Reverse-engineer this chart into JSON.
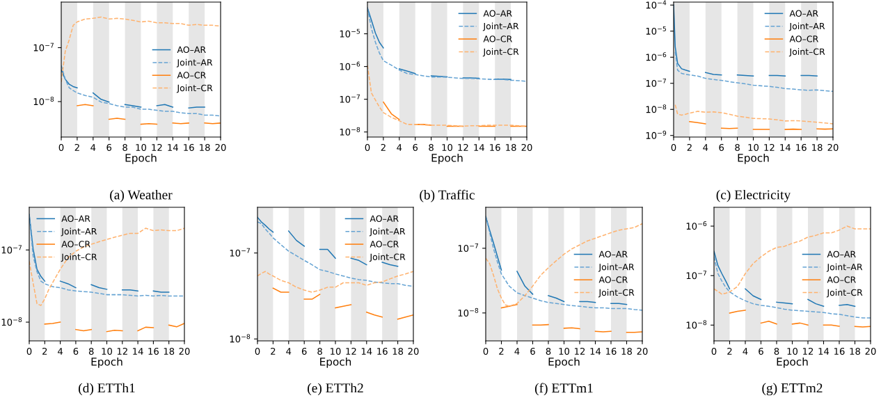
{
  "chart_data": [
    {
      "type": "line",
      "title": "(a) Weather",
      "xlabel": "Epoch",
      "log": "y",
      "legend": "center right",
      "xlim": [
        0,
        20
      ],
      "xticks": [
        0,
        2,
        4,
        6,
        8,
        10,
        12,
        14,
        16,
        18,
        20
      ],
      "ylim": [
        2.2e-09,
        7e-07
      ],
      "yticks": [
        {
          "value": 1e-07,
          "label": "10$^{−7}$"
        },
        {
          "value": 1e-08,
          "label": "10$^{−8}$"
        }
      ],
      "bands": [
        {
          "axis": "x",
          "from": 0,
          "to": 2,
          "color": "#e6e6e6"
        },
        {
          "axis": "x",
          "from": 4,
          "to": 6,
          "color": "#e6e6e6"
        },
        {
          "axis": "x",
          "from": 8,
          "to": 10,
          "color": "#e6e6e6"
        },
        {
          "axis": "x",
          "from": 12,
          "to": 14,
          "color": "#e6e6e6"
        },
        {
          "axis": "x",
          "from": 16,
          "to": 18,
          "color": "#e6e6e6"
        }
      ],
      "series": [
        {
          "name": "AO–AR",
          "color": "#1f77b4",
          "line_style": "solid",
          "x": [
            0,
            0.5,
            1,
            1.5,
            2,
            3,
            4,
            5,
            6,
            7,
            8,
            9,
            10,
            11,
            12,
            13,
            14,
            15,
            16,
            17,
            18
          ],
          "values": [
            3.9e-08,
            2.6e-08,
            2.1e-08,
            1.9e-08,
            1.8e-08,
            null,
            1.45e-08,
            1.1e-08,
            9.8e-09,
            null,
            8.8e-09,
            8.4e-09,
            7.9e-09,
            null,
            8.4e-09,
            8.8e-09,
            7.9e-09,
            null,
            7.6e-09,
            7.9e-09,
            7.9e-09
          ]
        },
        {
          "name": "Joint–AR",
          "color": "#65a3d3",
          "line_style": "dashed",
          "x": [
            0,
            0.5,
            1,
            1.5,
            2,
            3,
            4,
            5,
            6,
            7,
            8,
            9,
            10,
            11,
            12,
            13,
            14,
            15,
            16,
            17,
            18,
            19,
            20
          ],
          "values": [
            4.7e-08,
            2.6e-08,
            1.8e-08,
            1.6e-08,
            1.45e-08,
            1.3e-08,
            1.2e-08,
            9.8e-09,
            9.2e-09,
            8.4e-09,
            7.9e-09,
            7.9e-09,
            7.2e-09,
            7.2e-09,
            6.9e-09,
            6.6e-09,
            6.6e-09,
            6.2e-09,
            6e-09,
            6e-09,
            5.6e-09,
            5.6e-09,
            5.4e-09
          ]
        },
        {
          "name": "AO–CR",
          "color": "#ff7f0e",
          "line_style": "solid",
          "x": [
            2,
            3,
            4,
            5,
            6,
            7,
            8,
            9,
            10,
            11,
            12,
            13,
            14,
            15,
            16,
            17,
            18,
            19,
            20
          ],
          "values": [
            8.4e-09,
            8.8e-09,
            8.4e-09,
            null,
            4.7e-09,
            4.9e-09,
            4.7e-09,
            null,
            3.8e-09,
            3.9e-09,
            3.8e-09,
            null,
            4e-09,
            3.9e-09,
            4e-09,
            null,
            4e-09,
            3.9e-09,
            4e-09
          ]
        },
        {
          "name": "Joint–CR",
          "color": "#ffb26e",
          "line_style": "dashed",
          "x": [
            0,
            0.5,
            1,
            1.5,
            2,
            3,
            4,
            5,
            6,
            7,
            8,
            9,
            10,
            11,
            12,
            13,
            14,
            15,
            16,
            17,
            18,
            19,
            20
          ],
          "values": [
            2.3e-08,
            8.5e-08,
            1.4e-07,
            2.6e-07,
            3e-07,
            3.4e-07,
            3.5e-07,
            3.7e-07,
            3.4e-07,
            3.5e-07,
            3.4e-07,
            3.2e-07,
            3e-07,
            3.1e-07,
            2.9e-07,
            2.9e-07,
            2.8e-07,
            2.8e-07,
            2.6e-07,
            2.7e-07,
            2.6e-07,
            2.6e-07,
            2.5e-07
          ]
        }
      ]
    },
    {
      "type": "line",
      "title": "(b) Traffic",
      "xlabel": "Epoch",
      "log": "y",
      "legend": "top right",
      "xlim": [
        0,
        20
      ],
      "xticks": [
        0,
        2,
        4,
        6,
        8,
        10,
        12,
        14,
        16,
        18,
        20
      ],
      "ylim": [
        7e-09,
        9.3e-05
      ],
      "yticks": [
        {
          "value": 1e-05,
          "label": "10$^{−5}$"
        },
        {
          "value": 1e-06,
          "label": "10$^{−6}$"
        },
        {
          "value": 1e-07,
          "label": "10$^{−7}$"
        },
        {
          "value": 1e-08,
          "label": "10$^{−8}$"
        }
      ],
      "bands": [
        {
          "axis": "x",
          "from": 0,
          "to": 2,
          "color": "#e6e6e6"
        },
        {
          "axis": "x",
          "from": 4,
          "to": 6,
          "color": "#e6e6e6"
        },
        {
          "axis": "x",
          "from": 8,
          "to": 10,
          "color": "#e6e6e6"
        },
        {
          "axis": "x",
          "from": 12,
          "to": 14,
          "color": "#e6e6e6"
        },
        {
          "axis": "x",
          "from": 16,
          "to": 18,
          "color": "#e6e6e6"
        }
      ],
      "series": [
        {
          "name": "AO–AR",
          "color": "#1f77b4",
          "line_style": "solid",
          "x": [
            0,
            0.5,
            1,
            1.5,
            2,
            3,
            4,
            5,
            6,
            7,
            8,
            9,
            10,
            11,
            12,
            13,
            14,
            15,
            16,
            17,
            18
          ],
          "values": [
            6.2e-05,
            2.6e-05,
            1.05e-05,
            5.5e-06,
            3.7e-06,
            null,
            8.5e-07,
            7.2e-07,
            6.1e-07,
            null,
            5.2e-07,
            5e-07,
            4.8e-07,
            null,
            4.5e-07,
            4.5e-07,
            4.4e-07,
            null,
            4.1e-07,
            4.1e-07,
            4e-07
          ]
        },
        {
          "name": "Joint–AR",
          "color": "#65a3d3",
          "line_style": "dashed",
          "x": [
            0,
            0.5,
            1,
            1.5,
            2,
            3,
            4,
            5,
            6,
            7,
            8,
            9,
            10,
            11,
            12,
            13,
            14,
            15,
            16,
            17,
            18,
            19,
            20
          ],
          "values": [
            6.2e-05,
            1.45e-05,
            5.5e-06,
            2.6e-06,
            1.5e-06,
            1.1e-06,
            7.8e-07,
            6.1e-07,
            5.7e-07,
            5.2e-07,
            4.8e-07,
            4.8e-07,
            4.7e-07,
            4.5e-07,
            4.3e-07,
            4.3e-07,
            4.2e-07,
            4.1e-07,
            4e-07,
            4e-07,
            3.8e-07,
            3.7e-07,
            3.5e-07
          ]
        },
        {
          "name": "AO–CR",
          "color": "#ff7f0e",
          "line_style": "solid",
          "x": [
            2,
            3,
            4,
            5,
            6,
            7,
            8,
            9,
            10,
            11,
            12,
            13,
            14,
            15,
            16,
            17,
            18,
            19,
            20
          ],
          "values": [
            8.2e-08,
            3.6e-08,
            2.4e-08,
            null,
            1.7e-08,
            1.7e-08,
            1.6e-08,
            null,
            1.5e-08,
            1.5e-08,
            1.5e-08,
            null,
            1.5e-08,
            1.5e-08,
            1.5e-08,
            null,
            1.5e-08,
            1.5e-08,
            1.5e-08
          ]
        },
        {
          "name": "Joint–CR",
          "color": "#ffb26e",
          "line_style": "dashed",
          "x": [
            0,
            0.5,
            1,
            1.5,
            2,
            3,
            4,
            5,
            6,
            7,
            8,
            9,
            10,
            11,
            12,
            13,
            14,
            15,
            16,
            17,
            18,
            19,
            20
          ],
          "values": [
            1.1e-06,
            1.55e-07,
            9.5e-08,
            5.8e-08,
            3.9e-08,
            2.8e-08,
            2.2e-08,
            1.7e-08,
            1.7e-08,
            1.65e-08,
            1.6e-08,
            1.6e-08,
            1.6e-08,
            1.55e-08,
            1.5e-08,
            1.55e-08,
            1.55e-08,
            1.6e-08,
            1.6e-08,
            1.6e-08,
            1.6e-08,
            1.55e-08,
            1.5e-08
          ]
        }
      ]
    },
    {
      "type": "line",
      "title": "(c) Electricity",
      "xlabel": "Epoch",
      "log": "y",
      "legend": "top right",
      "xlim": [
        0,
        20
      ],
      "xticks": [
        0,
        2,
        4,
        6,
        8,
        10,
        12,
        14,
        16,
        18,
        20
      ],
      "ylim": [
        8.7e-10,
        0.00013
      ],
      "yticks": [
        {
          "value": 0.0001,
          "label": "10$^{−4}$"
        },
        {
          "value": 1e-05,
          "label": "10$^{−5}$"
        },
        {
          "value": 1e-06,
          "label": "10$^{−6}$"
        },
        {
          "value": 1e-07,
          "label": "10$^{−7}$"
        },
        {
          "value": 1e-08,
          "label": "10$^{−8}$"
        },
        {
          "value": 1e-09,
          "label": "10$^{−9}$"
        }
      ],
      "bands": [
        {
          "axis": "x",
          "from": 0,
          "to": 2,
          "color": "#e6e6e6"
        },
        {
          "axis": "x",
          "from": 4,
          "to": 6,
          "color": "#e6e6e6"
        },
        {
          "axis": "x",
          "from": 8,
          "to": 10,
          "color": "#e6e6e6"
        },
        {
          "axis": "x",
          "from": 12,
          "to": 14,
          "color": "#e6e6e6"
        },
        {
          "axis": "x",
          "from": 16,
          "to": 18,
          "color": "#e6e6e6"
        }
      ],
      "series": [
        {
          "name": "AO–AR",
          "color": "#1f77b4",
          "line_style": "solid",
          "x": [
            0,
            0.2,
            0.5,
            1,
            1.5,
            2,
            3,
            4,
            5,
            6,
            7,
            8,
            9,
            10,
            11,
            12,
            13,
            14,
            15,
            16,
            17,
            18
          ],
          "values": [
            0.0001,
            2.5e-06,
            5.8e-07,
            3.6e-07,
            3.2e-07,
            2.9e-07,
            null,
            2.6e-07,
            2.2e-07,
            2.1e-07,
            null,
            2.1e-07,
            2e-07,
            1.9e-07,
            null,
            2e-07,
            2e-07,
            1.9e-07,
            null,
            2e-07,
            2e-07,
            1.9e-07
          ]
        },
        {
          "name": "Joint–AR",
          "color": "#65a3d3",
          "line_style": "dashed",
          "x": [
            0.2,
            0.5,
            1,
            1.5,
            2,
            3,
            4,
            5,
            6,
            7,
            8,
            9,
            10,
            11,
            12,
            13,
            14,
            15,
            16,
            17,
            18,
            19,
            20
          ],
          "values": [
            1.6e-06,
            3.2e-07,
            2.4e-07,
            2.2e-07,
            2.1e-07,
            1.9e-07,
            1.55e-07,
            1.4e-07,
            1.3e-07,
            1.15e-07,
            1.05e-07,
            9.5e-08,
            8.5e-08,
            8e-08,
            7.6e-08,
            7e-08,
            6.3e-08,
            6e-08,
            5.6e-08,
            5.4e-08,
            5.6e-08,
            5.2e-08,
            4.9e-08
          ]
        },
        {
          "name": "AO–CR",
          "color": "#ff7f0e",
          "line_style": "solid",
          "x": [
            2,
            3,
            4,
            5,
            6,
            7,
            8,
            9,
            10,
            11,
            12,
            13,
            14,
            15,
            16,
            17,
            18,
            19,
            20
          ],
          "values": [
            3.4e-09,
            3.1e-09,
            2.8e-09,
            null,
            1.9e-09,
            1.85e-09,
            1.9e-09,
            null,
            1.7e-09,
            1.7e-09,
            1.7e-09,
            null,
            1.7e-09,
            1.75e-09,
            1.7e-09,
            null,
            1.8e-09,
            1.75e-09,
            1.8e-09
          ]
        },
        {
          "name": "Joint–CR",
          "color": "#ffb26e",
          "line_style": "dashed",
          "x": [
            0.2,
            0.5,
            1,
            1.5,
            2,
            3,
            4,
            5,
            6,
            7,
            8,
            9,
            10,
            11,
            12,
            13,
            14,
            15,
            16,
            17,
            18,
            19,
            20
          ],
          "values": [
            1.5e-08,
            6.6e-09,
            6e-09,
            6.5e-09,
            7.2e-09,
            8.4e-09,
            7.8e-09,
            8e-09,
            7.5e-09,
            6.5e-09,
            5.5e-09,
            5e-09,
            4.5e-09,
            4.4e-09,
            4.3e-09,
            4e-09,
            3.6e-09,
            3.7e-09,
            3.6e-09,
            3.4e-09,
            3.2e-09,
            3e-09,
            2.8e-09
          ]
        }
      ]
    },
    {
      "type": "line",
      "title": "(d) ETTh1",
      "xlabel": "Epoch",
      "log": "y",
      "legend": "top left",
      "xlim": [
        0,
        20
      ],
      "xticks": [
        0,
        2,
        4,
        6,
        8,
        10,
        12,
        14,
        16,
        18,
        20
      ],
      "ylim": [
        5.5e-09,
        3.9e-07
      ],
      "yticks": [
        {
          "value": 1e-07,
          "label": "10$^{−7}$"
        },
        {
          "value": 1e-08,
          "label": "10$^{−8}$"
        }
      ],
      "bands": [
        {
          "axis": "x",
          "from": 0,
          "to": 2,
          "color": "#e6e6e6"
        },
        {
          "axis": "x",
          "from": 4,
          "to": 6,
          "color": "#e6e6e6"
        },
        {
          "axis": "x",
          "from": 8,
          "to": 10,
          "color": "#e6e6e6"
        },
        {
          "axis": "x",
          "from": 12,
          "to": 14,
          "color": "#e6e6e6"
        },
        {
          "axis": "x",
          "from": 16,
          "to": 18,
          "color": "#e6e6e6"
        }
      ],
      "series": [
        {
          "name": "AO–AR",
          "color": "#1f77b4",
          "line_style": "solid",
          "x": [
            0,
            0.5,
            1,
            1.5,
            2,
            3,
            4,
            5,
            6,
            7,
            8,
            9,
            10,
            11,
            12,
            13,
            14,
            15,
            16,
            17,
            18
          ],
          "values": [
            3.1e-07,
            1.04e-07,
            5.4e-08,
            4.3e-08,
            3.7e-08,
            null,
            3.7e-08,
            3.4e-08,
            3e-08,
            null,
            3.3e-08,
            3e-08,
            2.85e-08,
            null,
            2.8e-08,
            2.8e-08,
            2.7e-08,
            null,
            2.7e-08,
            2.6e-08,
            2.6e-08
          ]
        },
        {
          "name": "Joint–AR",
          "color": "#65a3d3",
          "line_style": "dashed",
          "x": [
            0,
            0.5,
            1,
            1.5,
            2,
            3,
            4,
            5,
            6,
            7,
            8,
            9,
            10,
            11,
            12,
            13,
            14,
            15,
            16,
            17,
            18,
            19,
            20
          ],
          "values": [
            3.1e-07,
            8.3e-08,
            5e-08,
            3.7e-08,
            3.4e-08,
            3.1e-08,
            3e-08,
            2.8e-08,
            2.7e-08,
            2.65e-08,
            2.6e-08,
            2.5e-08,
            2.4e-08,
            2.4e-08,
            2.4e-08,
            2.35e-08,
            2.3e-08,
            2.35e-08,
            2.3e-08,
            2.35e-08,
            2.3e-08,
            2.3e-08,
            2.3e-08
          ]
        },
        {
          "name": "AO–CR",
          "color": "#ff7f0e",
          "line_style": "solid",
          "x": [
            2,
            3,
            4,
            5,
            6,
            7,
            8,
            9,
            10,
            11,
            12,
            13,
            14,
            15,
            16,
            17,
            18,
            19,
            20
          ],
          "values": [
            9.4e-09,
            9.6e-09,
            1e-08,
            null,
            7.9e-09,
            7.6e-09,
            7.9e-09,
            null,
            7.4e-09,
            7.7e-09,
            7.6e-09,
            null,
            7.6e-09,
            8.5e-09,
            8.4e-09,
            null,
            9.1e-09,
            8.6e-09,
            9.6e-09
          ]
        },
        {
          "name": "Joint–CR",
          "color": "#ffb26e",
          "line_style": "dashed",
          "x": [
            0,
            0.5,
            1,
            1.5,
            2,
            2.5,
            3,
            4,
            5,
            6,
            7,
            8,
            9,
            10,
            11,
            12,
            13,
            14,
            15,
            16,
            17,
            18,
            19,
            20
          ],
          "values": [
            7e-08,
            3.5e-08,
            1.8e-08,
            1.7e-08,
            2.1e-08,
            2.8e-08,
            3.5e-08,
            5.4e-08,
            7.8e-08,
            9.6e-08,
            1.1e-07,
            1.2e-07,
            1.3e-07,
            1.4e-07,
            1.5e-07,
            1.6e-07,
            1.7e-07,
            1.7e-07,
            2e-07,
            1.85e-07,
            1.9e-07,
            1.85e-07,
            1.85e-07,
            2e-07
          ]
        }
      ]
    },
    {
      "type": "line",
      "title": "(e) ETTh2",
      "xlabel": "Epoch",
      "log": "y",
      "legend": "top right",
      "xlim": [
        0,
        20
      ],
      "xticks": [
        0,
        2,
        4,
        6,
        8,
        10,
        12,
        14,
        16,
        18,
        20
      ],
      "ylim": [
        9.5e-09,
        3.4e-07
      ],
      "yticks": [
        {
          "value": 1e-07,
          "label": "10$^{−7}$"
        },
        {
          "value": 1e-08,
          "label": "10$^{−8}$"
        }
      ],
      "bands": [
        {
          "axis": "x",
          "from": 0,
          "to": 2,
          "color": "#e6e6e6"
        },
        {
          "axis": "x",
          "from": 4,
          "to": 6,
          "color": "#e6e6e6"
        },
        {
          "axis": "x",
          "from": 8,
          "to": 10,
          "color": "#e6e6e6"
        },
        {
          "axis": "x",
          "from": 12,
          "to": 14,
          "color": "#e6e6e6"
        },
        {
          "axis": "x",
          "from": 16,
          "to": 18,
          "color": "#e6e6e6"
        }
      ],
      "series": [
        {
          "name": "AO–AR",
          "color": "#1f77b4",
          "line_style": "solid",
          "x": [
            0,
            0.5,
            1,
            1.5,
            2,
            3,
            4,
            5,
            6,
            7,
            8,
            9,
            10,
            11,
            12,
            13,
            14,
            15,
            16,
            17,
            18
          ],
          "values": [
            2.6e-07,
            2.3e-07,
            2.1e-07,
            1.9e-07,
            1.75e-07,
            null,
            1.8e-07,
            1.4e-07,
            1.2e-07,
            null,
            1.1e-07,
            1.1e-07,
            8.7e-08,
            null,
            8.7e-08,
            8.2e-08,
            7.3e-08,
            null,
            7.8e-08,
            7.3e-08,
            7e-08
          ]
        },
        {
          "name": "Joint–AR",
          "color": "#65a3d3",
          "line_style": "dashed",
          "x": [
            0,
            0.5,
            1,
            1.5,
            2,
            3,
            4,
            5,
            6,
            7,
            8,
            9,
            10,
            11,
            12,
            13,
            14,
            15,
            16,
            17,
            18,
            19,
            20
          ],
          "values": [
            2.3e-07,
            2.2e-07,
            1.9e-07,
            1.7e-07,
            1.5e-07,
            1.25e-07,
            1.05e-07,
            9.3e-08,
            8.2e-08,
            7.3e-08,
            6.4e-08,
            6.1e-08,
            5.7e-08,
            5.4e-08,
            5.1e-08,
            4.9e-08,
            4.8e-08,
            4.6e-08,
            4.5e-08,
            4.4e-08,
            4.4e-08,
            4.2e-08,
            4.1e-08
          ]
        },
        {
          "name": "AO–CR",
          "color": "#ff7f0e",
          "line_style": "solid",
          "x": [
            2,
            3,
            4,
            5,
            6,
            7,
            8,
            9,
            10,
            11,
            12,
            13,
            14,
            15,
            16,
            17,
            18,
            19,
            20
          ],
          "values": [
            3.9e-08,
            3.5e-08,
            3.5e-08,
            null,
            2.9e-08,
            2.9e-08,
            3.3e-08,
            null,
            2.3e-08,
            2.4e-08,
            2.5e-08,
            null,
            2.05e-08,
            1.9e-08,
            1.8e-08,
            null,
            1.7e-08,
            1.8e-08,
            1.9e-08
          ]
        },
        {
          "name": "Joint–CR",
          "color": "#ffb26e",
          "line_style": "dashed",
          "x": [
            0,
            0.5,
            1,
            1.5,
            2,
            3,
            4,
            5,
            6,
            7,
            8,
            9,
            10,
            11,
            12,
            13,
            14,
            15,
            16,
            17,
            18,
            19,
            20
          ],
          "values": [
            5.4e-08,
            5.8e-08,
            6.1e-08,
            5.7e-08,
            5.4e-08,
            4.8e-08,
            4.5e-08,
            4e-08,
            3.7e-08,
            3.5e-08,
            3.7e-08,
            4e-08,
            4e-08,
            4.5e-08,
            4.5e-08,
            4.5e-08,
            4.2e-08,
            4.5e-08,
            4.6e-08,
            5e-08,
            5.4e-08,
            5.7e-08,
            6.1e-08
          ]
        }
      ]
    },
    {
      "type": "line",
      "title": "(f) ETTm1",
      "xlabel": "Epoch",
      "log": "y",
      "legend": "center right",
      "xlim": [
        0,
        20
      ],
      "xticks": [
        0,
        2,
        4,
        6,
        8,
        10,
        12,
        14,
        16,
        18,
        20
      ],
      "ylim": [
        3.7e-09,
        4.3e-07
      ],
      "yticks": [
        {
          "value": 1e-07,
          "label": "10$^{−7}$"
        },
        {
          "value": 1e-08,
          "label": "10$^{−8}$"
        }
      ],
      "bands": [
        {
          "axis": "x",
          "from": 0,
          "to": 2,
          "color": "#e6e6e6"
        },
        {
          "axis": "x",
          "from": 4,
          "to": 6,
          "color": "#e6e6e6"
        },
        {
          "axis": "x",
          "from": 8,
          "to": 10,
          "color": "#e6e6e6"
        },
        {
          "axis": "x",
          "from": 12,
          "to": 14,
          "color": "#e6e6e6"
        },
        {
          "axis": "x",
          "from": 16,
          "to": 18,
          "color": "#e6e6e6"
        }
      ],
      "series": [
        {
          "name": "AO–AR",
          "color": "#1f77b4",
          "line_style": "solid",
          "x": [
            0,
            0.5,
            1,
            1.5,
            2,
            3,
            4,
            5,
            6,
            7,
            8,
            9,
            10,
            11,
            12,
            13,
            14,
            15,
            16,
            17,
            18
          ],
          "values": [
            3.1e-07,
            1.9e-07,
            1.2e-07,
            7.4e-08,
            4.6e-08,
            null,
            4.4e-08,
            2.6e-08,
            1.95e-08,
            null,
            1.85e-08,
            1.7e-08,
            1.5e-08,
            null,
            1.5e-08,
            1.5e-08,
            1.45e-08,
            null,
            1.4e-08,
            1.4e-08,
            1.35e-08
          ]
        },
        {
          "name": "Joint–AR",
          "color": "#65a3d3",
          "line_style": "dashed",
          "x": [
            0,
            0.5,
            1,
            1.5,
            2,
            3,
            4,
            5,
            6,
            7,
            8,
            9,
            10,
            11,
            12,
            13,
            14,
            15,
            16,
            17,
            18,
            19,
            20
          ],
          "values": [
            3.1e-07,
            1.75e-07,
            9.8e-08,
            6.1e-08,
            4e-08,
            2.6e-08,
            2.05e-08,
            1.85e-08,
            1.7e-08,
            1.55e-08,
            1.45e-08,
            1.4e-08,
            1.35e-08,
            1.3e-08,
            1.27e-08,
            1.23e-08,
            1.2e-08,
            1.2e-08,
            1.17e-08,
            1.17e-08,
            1.17e-08,
            1.13e-08,
            1.1e-08
          ]
        },
        {
          "name": "AO–CR",
          "color": "#ff7f0e",
          "line_style": "solid",
          "x": [
            2,
            3,
            4,
            5,
            6,
            7,
            8,
            9,
            10,
            11,
            12,
            13,
            14,
            15,
            16,
            17,
            18,
            19,
            20
          ],
          "values": [
            1.2e-08,
            1.27e-08,
            1.35e-08,
            null,
            6.5e-09,
            6.5e-09,
            6.6e-09,
            null,
            5.8e-09,
            5.9e-09,
            5.7e-09,
            null,
            5.2e-09,
            5.1e-09,
            5.2e-09,
            null,
            5e-09,
            5e-09,
            5.1e-09
          ]
        },
        {
          "name": "Joint–CR",
          "color": "#ffb26e",
          "line_style": "dashed",
          "x": [
            0,
            0.5,
            1,
            1.5,
            2,
            2.5,
            3,
            4,
            5,
            6,
            7,
            8,
            9,
            10,
            11,
            12,
            13,
            14,
            15,
            16,
            17,
            18,
            19,
            20
          ],
          "values": [
            7e-08,
            5.8e-08,
            3.8e-08,
            2.35e-08,
            1.7e-08,
            1.33e-08,
            1.27e-08,
            1.4e-08,
            1.85e-08,
            2.6e-08,
            3.8e-08,
            5e-08,
            6.4e-08,
            8.1e-08,
            9.8e-08,
            1.13e-07,
            1.3e-07,
            1.43e-07,
            1.58e-07,
            1.74e-07,
            1.9e-07,
            2e-07,
            2.1e-07,
            2.4e-07
          ]
        }
      ]
    },
    {
      "type": "line",
      "title": "(g) ETTm2",
      "xlabel": "Epoch",
      "log": "y",
      "legend": "center right",
      "xlim": [
        0,
        20
      ],
      "xticks": [
        0,
        2,
        4,
        6,
        8,
        10,
        12,
        14,
        16,
        18,
        20
      ],
      "ylim": [
        4.8e-09,
        2.4e-06
      ],
      "yticks": [
        {
          "value": 1e-06,
          "label": "10$^{−6}$"
        },
        {
          "value": 1e-07,
          "label": "10$^{−7}$"
        },
        {
          "value": 1e-08,
          "label": "10$^{−8}$"
        }
      ],
      "bands": [
        {
          "axis": "x",
          "from": 0,
          "to": 2,
          "color": "#e6e6e6"
        },
        {
          "axis": "x",
          "from": 4,
          "to": 6,
          "color": "#e6e6e6"
        },
        {
          "axis": "x",
          "from": 8,
          "to": 10,
          "color": "#e6e6e6"
        },
        {
          "axis": "x",
          "from": 12,
          "to": 14,
          "color": "#e6e6e6"
        },
        {
          "axis": "x",
          "from": 16,
          "to": 18,
          "color": "#e6e6e6"
        }
      ],
      "series": [
        {
          "name": "AO–AR",
          "color": "#1f77b4",
          "line_style": "solid",
          "x": [
            0,
            0.5,
            1,
            1.5,
            2,
            3,
            4,
            5,
            6,
            7,
            8,
            9,
            10,
            11,
            12,
            13,
            14,
            15,
            16,
            17,
            18
          ],
          "values": [
            3.1e-07,
            1.6e-07,
            1.1e-07,
            7.8e-08,
            5.4e-08,
            null,
            5.4e-08,
            3.9e-08,
            3.3e-08,
            null,
            2.9e-08,
            2.8e-08,
            2.7e-08,
            null,
            3.3e-08,
            2.7e-08,
            2.4e-08,
            null,
            2.5e-08,
            2.6e-08,
            2.4e-08
          ]
        },
        {
          "name": "Joint–AR",
          "color": "#65a3d3",
          "line_style": "dashed",
          "x": [
            0,
            0.5,
            1,
            1.5,
            2,
            3,
            4,
            5,
            6,
            7,
            8,
            9,
            10,
            11,
            12,
            13,
            14,
            15,
            16,
            17,
            18,
            19,
            20
          ],
          "values": [
            2.4e-07,
            1.1e-07,
            7.8e-08,
            5.8e-08,
            4.7e-08,
            3.7e-08,
            3.1e-08,
            2.7e-08,
            2.5e-08,
            2.4e-08,
            2.25e-08,
            2.1e-08,
            2e-08,
            1.95e-08,
            1.9e-08,
            1.85e-08,
            1.8e-08,
            1.7e-08,
            1.65e-08,
            1.55e-08,
            1.45e-08,
            1.4e-08,
            1.4e-08
          ]
        },
        {
          "name": "AO–CR",
          "color": "#ff7f0e",
          "line_style": "solid",
          "x": [
            2,
            3,
            4,
            5,
            6,
            7,
            8,
            9,
            10,
            11,
            12,
            13,
            14,
            15,
            16,
            17,
            18,
            19,
            20
          ],
          "values": [
            1.75e-08,
            1.9e-08,
            2e-08,
            null,
            1.1e-08,
            1.2e-08,
            1.05e-08,
            null,
            1.05e-08,
            1.1e-08,
            1e-08,
            null,
            1e-08,
            1e-08,
            9.5e-09,
            null,
            9.4e-09,
            9.2e-09,
            9.4e-09
          ]
        },
        {
          "name": "Joint–CR",
          "color": "#ffb26e",
          "line_style": "dashed",
          "x": [
            0,
            0.5,
            1,
            1.5,
            2,
            3,
            4,
            5,
            6,
            7,
            8,
            9,
            10,
            11,
            12,
            13,
            14,
            15,
            16,
            17,
            18,
            19,
            20
          ],
          "values": [
            5.4e-08,
            4.8e-08,
            4.2e-08,
            4.4e-08,
            4.7e-08,
            6e-08,
            1.1e-07,
            1.75e-07,
            2.4e-07,
            3.1e-07,
            3.7e-07,
            3.9e-07,
            4.5e-07,
            5e-07,
            6e-07,
            6.5e-07,
            7.3e-07,
            7.3e-07,
            8.3e-07,
            1e-06,
            8.8e-07,
            8.8e-07,
            8.8e-07
          ]
        }
      ]
    }
  ]
}
